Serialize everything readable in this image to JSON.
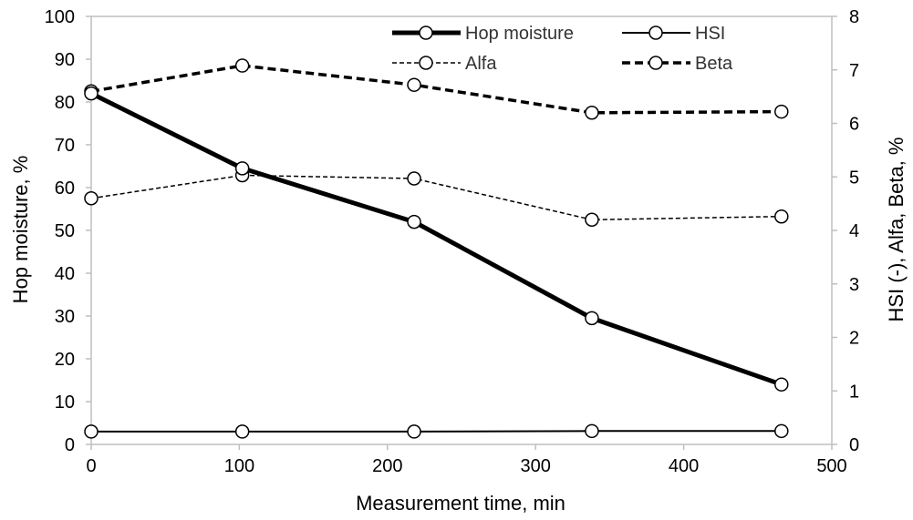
{
  "chart_data": {
    "type": "line",
    "xlabel": "Measurement time, min",
    "ylabel": "Hop moisture, %",
    "y2label": "HSI (-), Alfa, Beta, %",
    "xlim": [
      0,
      500
    ],
    "ylim": [
      0,
      100
    ],
    "y2lim": [
      0,
      8
    ],
    "xticks": [
      0,
      100,
      200,
      300,
      400,
      500
    ],
    "yticks": [
      0,
      10,
      20,
      30,
      40,
      50,
      60,
      70,
      80,
      90,
      100
    ],
    "y2ticks": [
      0,
      1,
      2,
      3,
      4,
      5,
      6,
      7,
      8
    ],
    "grid": false,
    "legend_position": "top-right",
    "x": [
      0,
      102,
      218,
      338,
      466
    ],
    "series": [
      {
        "name": "Hop moisture",
        "axis": "left",
        "style": "thick-solid",
        "values": [
          82,
          64.5,
          52,
          29.5,
          14
        ]
      },
      {
        "name": "HSI",
        "axis": "right",
        "style": "solid",
        "values": [
          0.24,
          0.24,
          0.24,
          0.25,
          0.25
        ]
      },
      {
        "name": "Alfa",
        "axis": "right",
        "style": "thin-dashed",
        "values": [
          4.6,
          5.03,
          4.97,
          4.2,
          4.26
        ]
      },
      {
        "name": "Beta",
        "axis": "right",
        "style": "thick-dashed",
        "values": [
          6.6,
          7.08,
          6.72,
          6.2,
          6.22
        ]
      }
    ],
    "colors": {
      "line": "#000000",
      "marker_fill": "#ffffff",
      "axis": "#bfbfbf",
      "legend_text": "#333333"
    }
  }
}
